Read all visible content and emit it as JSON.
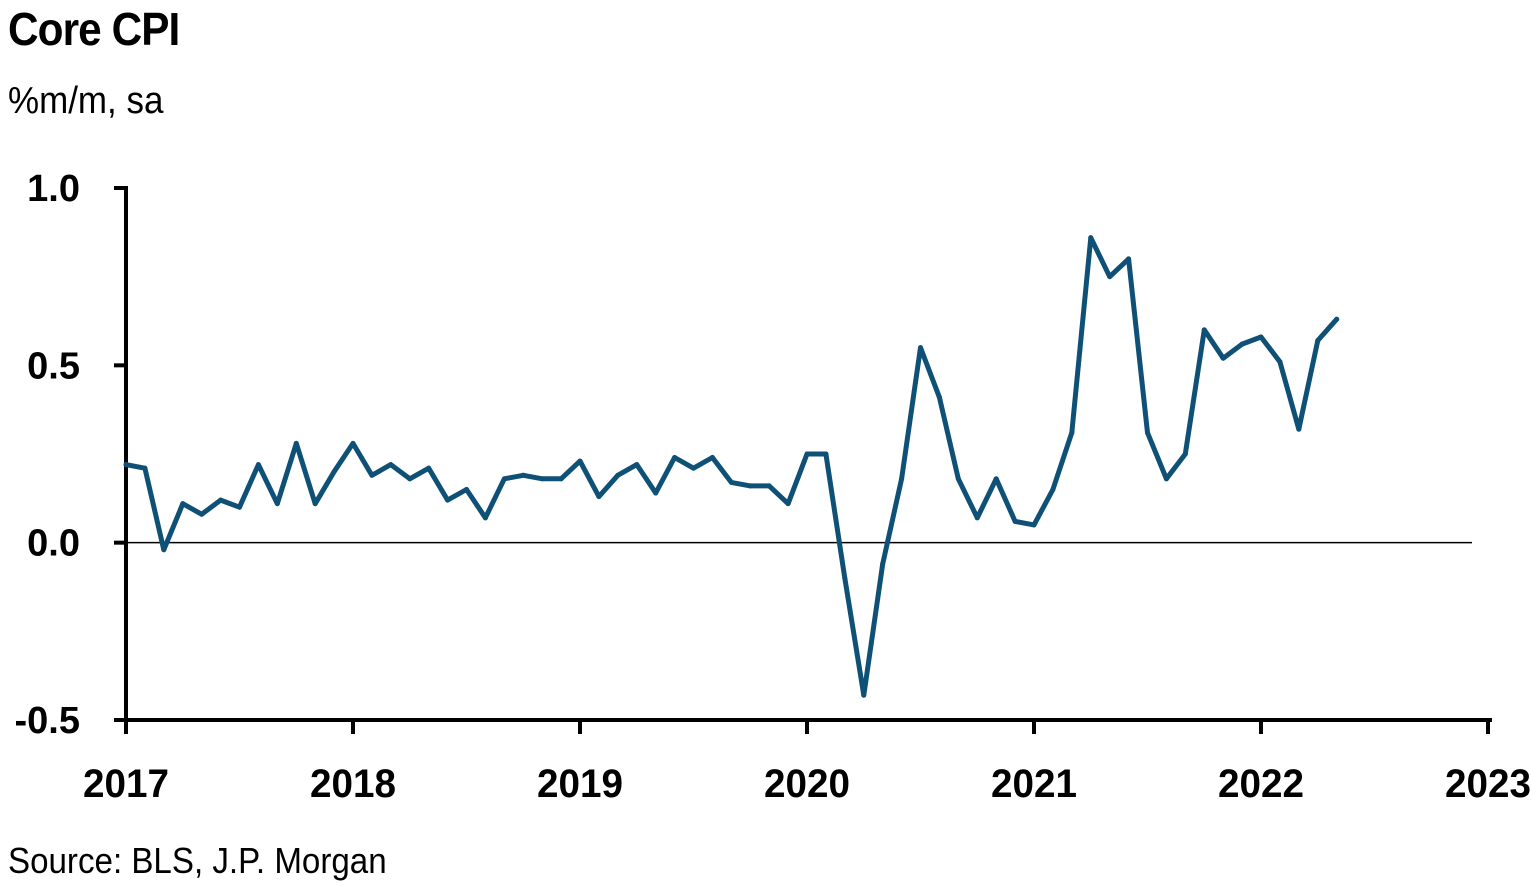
{
  "chart_data": {
    "type": "line",
    "title": "Core CPI",
    "subtitle": "%m/m, sa",
    "source": "Source: BLS, J.P. Morgan",
    "xlabel": "",
    "ylabel": "",
    "ylim": [
      -0.5,
      1.0
    ],
    "yticks": [
      "1.0",
      "0.5",
      "0.0",
      "-0.5"
    ],
    "ytick_values": [
      1.0,
      0.5,
      0.0,
      -0.5
    ],
    "xticks": [
      "2017",
      "2018",
      "2019",
      "2020",
      "2021",
      "2022",
      "2023"
    ],
    "xlim": [
      "2017-01",
      "2023-01"
    ],
    "grid": false,
    "zero_line": true,
    "line_color": "#0f5176",
    "series": [
      {
        "x": [
          "2017-01",
          "2017-02",
          "2017-03",
          "2017-04",
          "2017-05",
          "2017-06",
          "2017-07",
          "2017-08",
          "2017-09",
          "2017-10",
          "2017-11",
          "2017-12",
          "2018-01",
          "2018-02",
          "2018-03",
          "2018-04",
          "2018-05",
          "2018-06",
          "2018-07",
          "2018-08",
          "2018-09",
          "2018-10",
          "2018-11",
          "2018-12",
          "2019-01",
          "2019-02",
          "2019-03",
          "2019-04",
          "2019-05",
          "2019-06",
          "2019-07",
          "2019-08",
          "2019-09",
          "2019-10",
          "2019-11",
          "2019-12",
          "2020-01",
          "2020-02",
          "2020-03",
          "2020-04",
          "2020-05",
          "2020-06",
          "2020-07",
          "2020-08",
          "2020-09",
          "2020-10",
          "2020-11",
          "2020-12",
          "2021-01",
          "2021-02",
          "2021-03",
          "2021-04",
          "2021-05",
          "2021-06",
          "2021-07",
          "2021-08",
          "2021-09",
          "2021-10",
          "2021-11",
          "2021-12",
          "2022-01",
          "2022-02",
          "2022-03",
          "2022-04",
          "2022-05"
        ],
        "values": [
          0.22,
          0.21,
          -0.02,
          0.11,
          0.08,
          0.12,
          0.1,
          0.22,
          0.11,
          0.28,
          0.11,
          0.2,
          0.28,
          0.19,
          0.22,
          0.18,
          0.21,
          0.12,
          0.15,
          0.07,
          0.18,
          0.19,
          0.18,
          0.18,
          0.23,
          0.13,
          0.19,
          0.22,
          0.14,
          0.24,
          0.21,
          0.24,
          0.17,
          0.16,
          0.16,
          0.11,
          0.25,
          0.25,
          -0.1,
          -0.43,
          -0.06,
          0.18,
          0.55,
          0.41,
          0.18,
          0.07,
          0.18,
          0.06,
          0.05,
          0.15,
          0.31,
          0.86,
          0.75,
          0.8,
          0.31,
          0.18,
          0.25,
          0.6,
          0.52,
          0.56,
          0.58,
          0.51,
          0.32,
          0.57,
          0.63
        ]
      }
    ]
  }
}
